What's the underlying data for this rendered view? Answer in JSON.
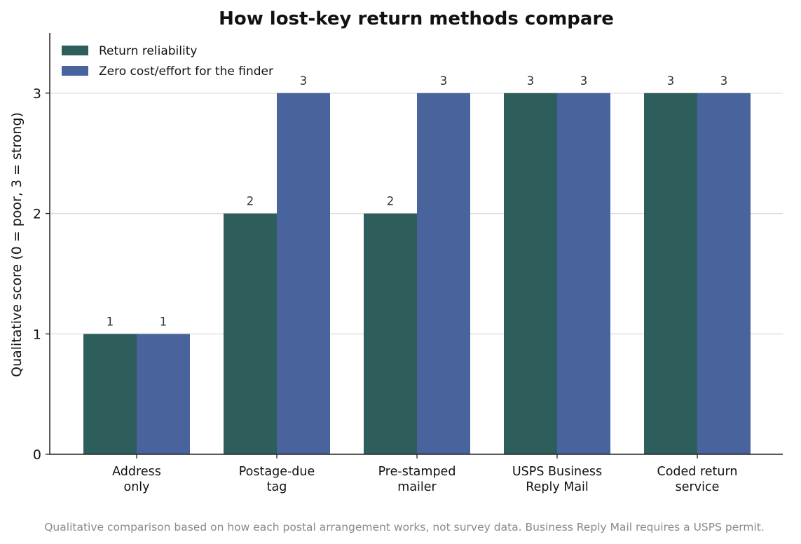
{
  "chart_data": {
    "type": "bar",
    "title": "How lost-key return methods compare",
    "ylabel": "Qualitative score  (0 = poor, 3 = strong)",
    "xlabel": "",
    "categories": [
      [
        "Address",
        "only"
      ],
      [
        "Postage-due",
        "tag"
      ],
      [
        "Pre-stamped",
        "mailer"
      ],
      [
        "USPS Business",
        "Reply Mail"
      ],
      [
        "Coded return",
        "service"
      ]
    ],
    "series": [
      {
        "name": "Return reliability",
        "color": "#2e5e5b",
        "values": [
          1,
          2,
          2,
          3,
          3
        ]
      },
      {
        "name": "Zero cost/effort for the finder",
        "color": "#49649c",
        "values": [
          1,
          3,
          3,
          3,
          3
        ]
      }
    ],
    "ylim": [
      0,
      3.5
    ],
    "yticks": [
      0,
      1,
      2,
      3
    ],
    "grid": true,
    "legend": "top-left",
    "footnote": "Qualitative comparison based on how each postal arrangement works, not survey data. Business Reply Mail requires a USPS permit."
  }
}
